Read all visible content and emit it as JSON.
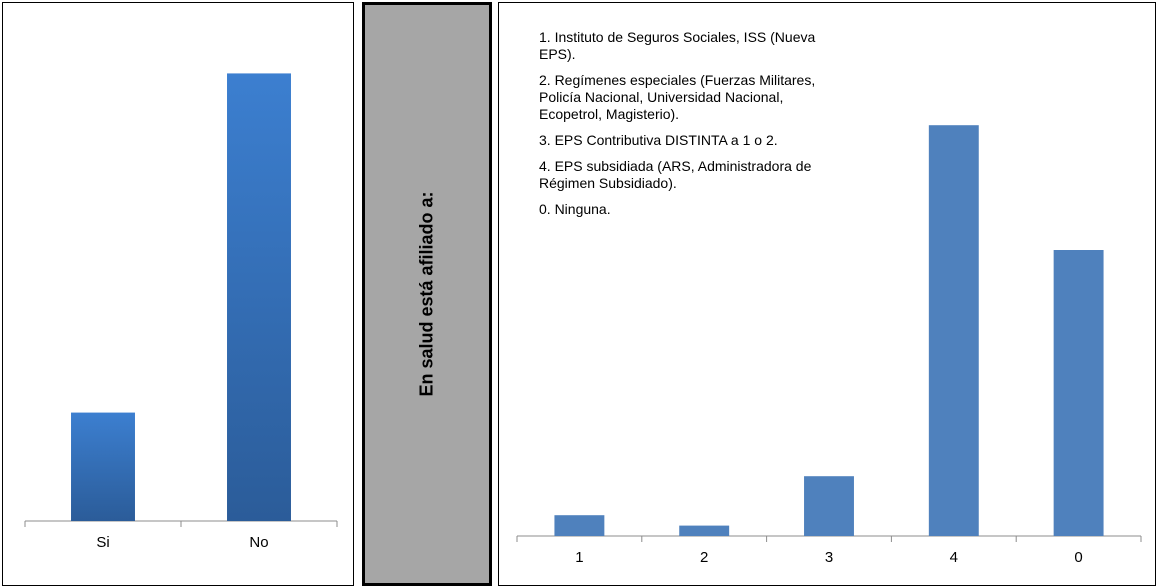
{
  "side_label": "En salud está afiliado a:",
  "legend_items": [
    "1. Instituto de Seguros Sociales, ISS (Nueva EPS).",
    "2. Regímenes especiales (Fuerzas Militares, Policía Nacional, Universidad Nacional, Ecopetrol, Magisterio).",
    "3. EPS Contributiva DISTINTA a 1 o 2.",
    "4. EPS subsidiada (ARS, Administradora de Régimen Subsidiado).",
    "0. Ninguna."
  ],
  "chart_data": [
    {
      "type": "bar",
      "categories": [
        "Si",
        "No"
      ],
      "values": [
        19.5,
        80.5
      ],
      "ylim": [
        0,
        100
      ],
      "color_top": "#3c7fd0",
      "color_bottom": "#2b5c99",
      "grid": false
    },
    {
      "type": "bar",
      "categories": [
        "1",
        "2",
        "3",
        "4",
        "0"
      ],
      "values": [
        4,
        2,
        11.5,
        79,
        55
      ],
      "ylim": [
        0,
        100
      ],
      "color": "#4f81bd",
      "grid": false
    }
  ]
}
